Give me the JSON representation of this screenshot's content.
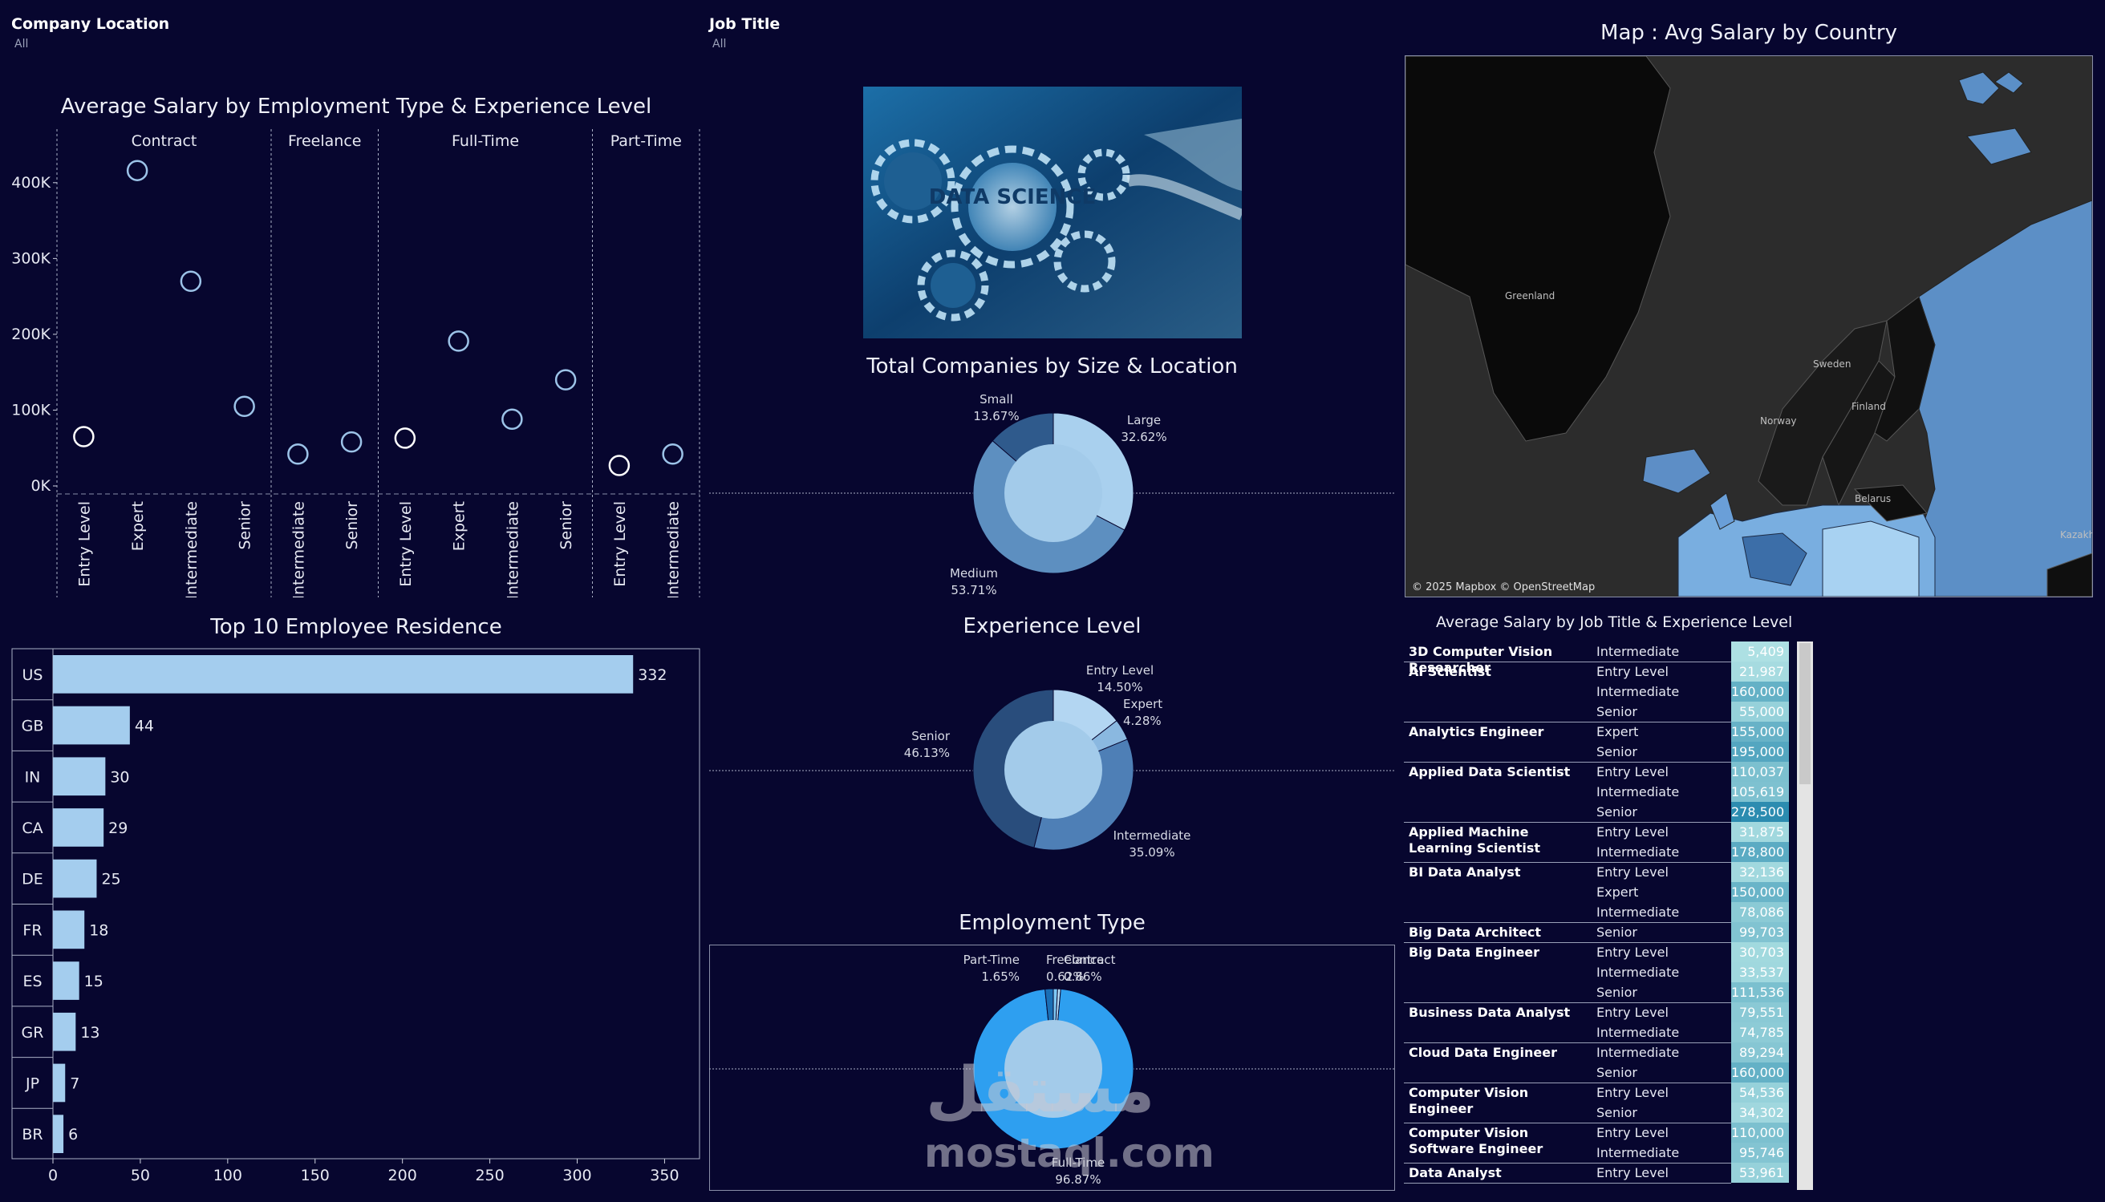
{
  "filters": {
    "company_location": {
      "label": "Company Location",
      "value": "All"
    },
    "job_title": {
      "label": "Job Title",
      "value": "All"
    }
  },
  "titles": {
    "salary_by_type": "Average Salary by Employment Type & Experience Level",
    "residence": "Top 10 Employee Residence",
    "company_size": "Total Companies by Size & Location",
    "experience": "Experience Level",
    "employment": "Employment Type",
    "map": "Map : Avg Salary by Country",
    "job_table": "Average Salary by Job Title & Experience Level"
  },
  "hero_image": {
    "label": "DATA SCIENCE"
  },
  "map": {
    "attribution": "© 2025 Mapbox © OpenStreetMap",
    "labels": [
      "Greenland",
      "Sweden",
      "Finland",
      "Norway",
      "Belarus",
      "Kazakh"
    ]
  },
  "chart_data": [
    {
      "id": "salary_by_type",
      "type": "scatter",
      "title": "Average Salary by Employment Type & Experience Level",
      "yticks": [
        "0K",
        "100K",
        "200K",
        "300K",
        "400K"
      ],
      "ylim": [
        0,
        440000
      ],
      "panels": [
        {
          "name": "Contract",
          "points": [
            {
              "level": "Entry Level",
              "value": 65000
            },
            {
              "level": "Expert",
              "value": 416000
            },
            {
              "level": "Intermediate",
              "value": 270000
            },
            {
              "level": "Senior",
              "value": 105000
            }
          ]
        },
        {
          "name": "Freelance",
          "points": [
            {
              "level": "Intermediate",
              "value": 42000
            },
            {
              "level": "Senior",
              "value": 58000
            }
          ]
        },
        {
          "name": "Full-Time",
          "points": [
            {
              "level": "Entry Level",
              "value": 63000
            },
            {
              "level": "Expert",
              "value": 191000
            },
            {
              "level": "Intermediate",
              "value": 88000
            },
            {
              "level": "Senior",
              "value": 140000
            }
          ]
        },
        {
          "name": "Part-Time",
          "points": [
            {
              "level": "Entry Level",
              "value": 27000
            },
            {
              "level": "Intermediate",
              "value": 42000
            }
          ]
        }
      ]
    },
    {
      "id": "residence",
      "type": "bar",
      "title": "Top 10 Employee Residence",
      "categories": [
        "US",
        "GB",
        "IN",
        "CA",
        "DE",
        "FR",
        "ES",
        "GR",
        "JP",
        "BR"
      ],
      "values": [
        332,
        44,
        30,
        29,
        25,
        18,
        15,
        13,
        7,
        6
      ],
      "xticks": [
        0,
        50,
        100,
        150,
        200,
        250,
        300,
        350
      ],
      "xlim": [
        0,
        370
      ]
    },
    {
      "id": "company_size",
      "type": "pie",
      "title": "Total Companies by Size & Location",
      "slices": [
        {
          "label": "Large",
          "pct": "32.62%",
          "value": 32.62,
          "color": "#a9d0ee"
        },
        {
          "label": "Medium",
          "pct": "53.71%",
          "value": 53.71,
          "color": "#5d8fc0"
        },
        {
          "label": "Small",
          "pct": "13.67%",
          "value": 13.67,
          "color": "#2f5a8c"
        }
      ]
    },
    {
      "id": "experience",
      "type": "pie",
      "title": "Experience Level",
      "slices": [
        {
          "label": "Entry Level",
          "pct": "14.50%",
          "value": 14.5,
          "color": "#b3d6f2"
        },
        {
          "label": "Expert",
          "pct": "4.28%",
          "value": 4.28,
          "color": "#8ab8e0"
        },
        {
          "label": "Intermediate",
          "pct": "35.09%",
          "value": 35.09,
          "color": "#4e7fb6"
        },
        {
          "label": "Senior",
          "pct": "46.13%",
          "value": 46.13,
          "color": "#294d7c"
        }
      ]
    },
    {
      "id": "employment",
      "type": "pie",
      "title": "Employment Type",
      "slices": [
        {
          "label": "Contract",
          "pct": "0.86%",
          "value": 0.86,
          "color": "#7ec8f5"
        },
        {
          "label": "Freelance",
          "pct": "0.62%",
          "value": 0.62,
          "color": "#b8e0fa"
        },
        {
          "label": "Full-Time",
          "pct": "96.87%",
          "value": 96.87,
          "color": "#2e9ff0"
        },
        {
          "label": "Part-Time",
          "pct": "1.65%",
          "value": 1.65,
          "color": "#1a6fb5"
        }
      ]
    },
    {
      "id": "job_table",
      "type": "table",
      "title": "Average Salary by Job Title & Experience Level",
      "groups": [
        {
          "title": "3D Computer Vision Researcher",
          "rows": [
            [
              "Intermediate",
              5409
            ]
          ]
        },
        {
          "title": "AI Scientist",
          "rows": [
            [
              "Entry Level",
              21987
            ],
            [
              "Intermediate",
              160000
            ],
            [
              "Senior",
              55000
            ]
          ]
        },
        {
          "title": "Analytics Engineer",
          "rows": [
            [
              "Expert",
              155000
            ],
            [
              "Senior",
              195000
            ]
          ]
        },
        {
          "title": "Applied Data Scientist",
          "rows": [
            [
              "Entry Level",
              110037
            ],
            [
              "Intermediate",
              105619
            ],
            [
              "Senior",
              278500
            ]
          ]
        },
        {
          "title": "Applied Machine Learning Scientist",
          "rows": [
            [
              "Entry Level",
              31875
            ],
            [
              "Intermediate",
              178800
            ]
          ]
        },
        {
          "title": "BI Data Analyst",
          "rows": [
            [
              "Entry Level",
              32136
            ],
            [
              "Expert",
              150000
            ],
            [
              "Intermediate",
              78086
            ]
          ]
        },
        {
          "title": "Big Data Architect",
          "rows": [
            [
              "Senior",
              99703
            ]
          ]
        },
        {
          "title": "Big Data Engineer",
          "rows": [
            [
              "Entry Level",
              30703
            ],
            [
              "Intermediate",
              33537
            ],
            [
              "Senior",
              111536
            ]
          ]
        },
        {
          "title": "Business Data Analyst",
          "rows": [
            [
              "Entry Level",
              79551
            ],
            [
              "Intermediate",
              74785
            ]
          ]
        },
        {
          "title": "Cloud Data Engineer",
          "rows": [
            [
              "Intermediate",
              89294
            ],
            [
              "Senior",
              160000
            ]
          ]
        },
        {
          "title": "Computer Vision Engineer",
          "rows": [
            [
              "Entry Level",
              54536
            ],
            [
              "Senior",
              34302
            ]
          ]
        },
        {
          "title": "Computer Vision Software Engineer",
          "rows": [
            [
              "Entry Level",
              110000
            ],
            [
              "Intermediate",
              95746
            ]
          ]
        },
        {
          "title": "Data Analyst",
          "rows": [
            [
              "Entry Level",
              53961
            ]
          ]
        }
      ]
    }
  ],
  "watermark": {
    "arabic": "مستقل",
    "latin": "mostaql.com"
  }
}
